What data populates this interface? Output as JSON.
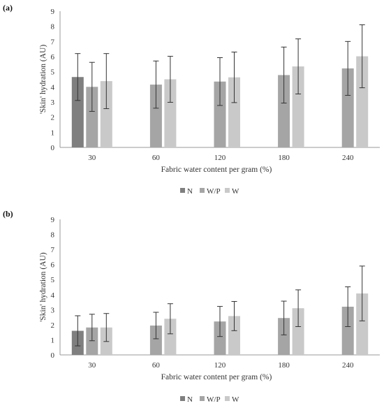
{
  "chart_data": [
    {
      "type": "bar",
      "panel_label": "(a)",
      "categories": [
        "30",
        "60",
        "120",
        "180",
        "240"
      ],
      "xlabel": "Fabric water content per gram (%)",
      "ylabel": "'Skin' hydration (AU)",
      "ylim": [
        0,
        9
      ],
      "yticks": [
        "0",
        "1",
        "2",
        "3",
        "4",
        "5",
        "6",
        "7",
        "8",
        "9"
      ],
      "grid": false,
      "legend_position": "bottom",
      "series": [
        {
          "name": "N",
          "color": "#7f7f7f",
          "values": [
            4.65,
            null,
            null,
            null,
            null
          ],
          "error": [
            1.55,
            null,
            null,
            null,
            null
          ]
        },
        {
          "name": "W/P",
          "color": "#a5a5a5",
          "values": [
            4.0,
            4.15,
            4.35,
            4.78,
            5.22
          ],
          "error": [
            1.62,
            1.56,
            1.58,
            1.85,
            1.78
          ]
        },
        {
          "name": "W",
          "color": "#c9c9c9",
          "values": [
            4.38,
            4.5,
            4.63,
            5.35,
            6.02
          ],
          "error": [
            1.82,
            1.52,
            1.67,
            1.82,
            2.08
          ]
        }
      ]
    },
    {
      "type": "bar",
      "panel_label": "(b)",
      "categories": [
        "30",
        "60",
        "120",
        "180",
        "240"
      ],
      "xlabel": "Fabric water content per gram (%)",
      "ylabel": "'Skin' hydration (AU)",
      "ylim": [
        0,
        9
      ],
      "yticks": [
        "0",
        "1",
        "2",
        "3",
        "4",
        "5",
        "6",
        "7",
        "8",
        "9"
      ],
      "grid": false,
      "legend_position": "bottom",
      "series": [
        {
          "name": "N",
          "color": "#7f7f7f",
          "values": [
            1.6,
            null,
            null,
            null,
            null
          ],
          "error": [
            1.0,
            null,
            null,
            null,
            null
          ]
        },
        {
          "name": "W/P",
          "color": "#a5a5a5",
          "values": [
            1.82,
            1.95,
            2.22,
            2.45,
            3.2
          ],
          "error": [
            0.88,
            0.88,
            1.0,
            1.12,
            1.32
          ]
        },
        {
          "name": "W",
          "color": "#c9c9c9",
          "values": [
            1.82,
            2.4,
            2.58,
            3.1,
            4.08
          ],
          "error": [
            0.93,
            1.0,
            0.97,
            1.22,
            1.82
          ]
        }
      ]
    }
  ]
}
